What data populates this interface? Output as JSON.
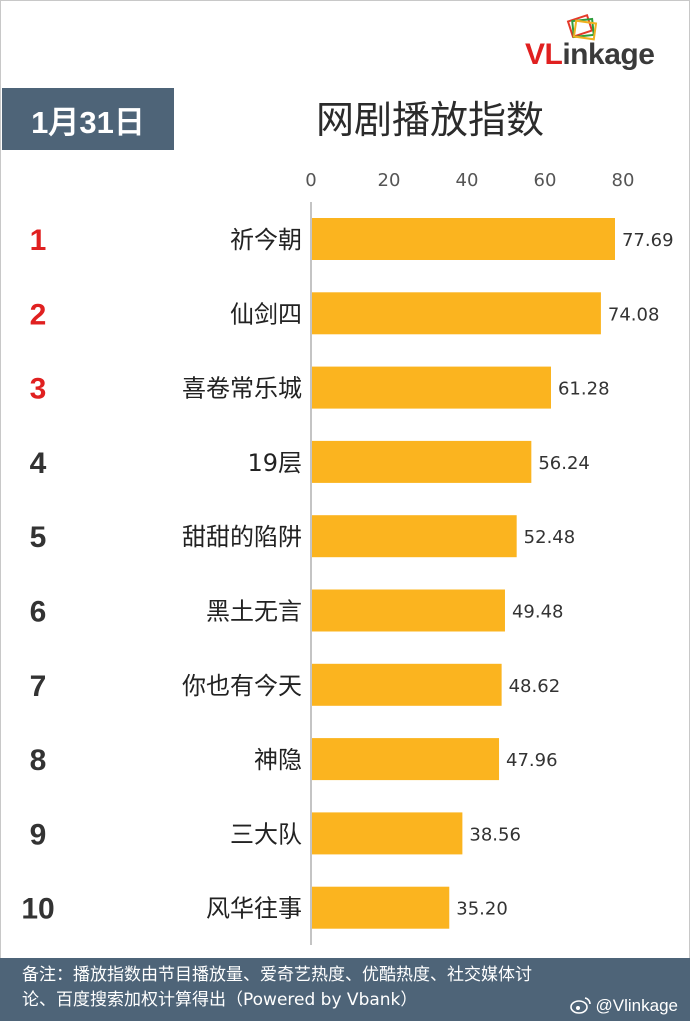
{
  "brand": {
    "logo_prefix": "VL",
    "logo_suffix": "inkage",
    "logo_icon": "stacked-cards-logo-icon",
    "red": "#e02020",
    "navy": "#4e6478",
    "bar_color": "#fbb41f"
  },
  "header": {
    "date": "1月31日",
    "title": "网剧播放指数"
  },
  "footer": {
    "note_line1": "备注：播放指数由节目播放量、爱奇艺热度、优酷热度、社交媒体讨",
    "note_line2": "论、百度搜索加权计算得出（Powered by Vbank）",
    "watermark": "@Vlinkage",
    "watermark_icon": "weibo-icon"
  },
  "chart_data": {
    "type": "bar",
    "orientation": "horizontal",
    "title": "网剧播放指数",
    "xlim": [
      0,
      80
    ],
    "ticks": [
      "0",
      "20",
      "40",
      "60",
      "80"
    ],
    "ranks": [
      "1",
      "2",
      "3",
      "4",
      "5",
      "6",
      "7",
      "8",
      "9",
      "10"
    ],
    "categories": [
      "祈今朝",
      "仙剑四",
      "喜卷常乐城",
      "19层",
      "甜甜的陷阱",
      "黑土无言",
      "你也有今天",
      "神隐",
      "三大队",
      "风华往事"
    ],
    "values": [
      77.69,
      74.08,
      61.28,
      56.24,
      52.48,
      49.48,
      48.62,
      47.96,
      38.56,
      35.2
    ],
    "value_labels": [
      "77.69",
      "74.08",
      "61.28",
      "56.24",
      "52.48",
      "49.48",
      "48.62",
      "47.96",
      "38.56",
      "35.20"
    ],
    "highlight_ranks_color": "#e02020",
    "rank_color": "#333333",
    "grid": false
  }
}
